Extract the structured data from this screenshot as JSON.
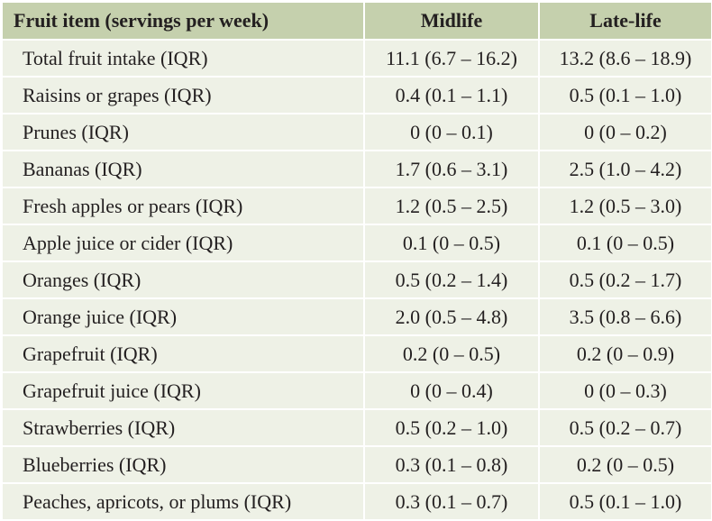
{
  "table": {
    "headers": [
      "Fruit item (servings per week)",
      "Midlife",
      "Late-life"
    ],
    "rows": [
      [
        "Total fruit intake (IQR)",
        "11.1 (6.7 – 16.2)",
        "13.2 (8.6 – 18.9)"
      ],
      [
        "Raisins or grapes (IQR)",
        "0.4 (0.1 – 1.1)",
        "0.5 (0.1 – 1.0)"
      ],
      [
        "Prunes (IQR)",
        "0 (0 – 0.1)",
        "0 (0 – 0.2)"
      ],
      [
        "Bananas (IQR)",
        "1.7 (0.6 – 3.1)",
        "2.5 (1.0 – 4.2)"
      ],
      [
        "Fresh apples or pears (IQR)",
        "1.2 (0.5 – 2.5)",
        "1.2 (0.5 – 3.0)"
      ],
      [
        "Apple juice or cider (IQR)",
        "0.1 (0 – 0.5)",
        "0.1 (0 – 0.5)"
      ],
      [
        "Oranges (IQR)",
        "0.5 (0.2 – 1.4)",
        "0.5 (0.2 – 1.7)"
      ],
      [
        "Orange juice (IQR)",
        "2.0 (0.5 – 4.8)",
        "3.5 (0.8 – 6.6)"
      ],
      [
        "Grapefruit (IQR)",
        "0.2 (0 – 0.5)",
        "0.2 (0 – 0.9)"
      ],
      [
        "Grapefruit juice (IQR)",
        "0 (0 – 0.4)",
        "0 (0 – 0.3)"
      ],
      [
        "Strawberries (IQR)",
        "0.5 (0.2 – 1.0)",
        "0.5 (0.2 – 0.7)"
      ],
      [
        "Blueberries (IQR)",
        "0.3 (0.1 – 0.8)",
        "0.2 (0 – 0.5)"
      ],
      [
        "Peaches, apricots, or plums (IQR)",
        "0.3 (0.1 – 0.7)",
        "0.5 (0.1 – 1.0)"
      ]
    ]
  },
  "colors": {
    "header_bg": "#c5d0ad",
    "row_bg": "#eef1e6",
    "grid": "#ffffff",
    "text": "#231f20"
  }
}
